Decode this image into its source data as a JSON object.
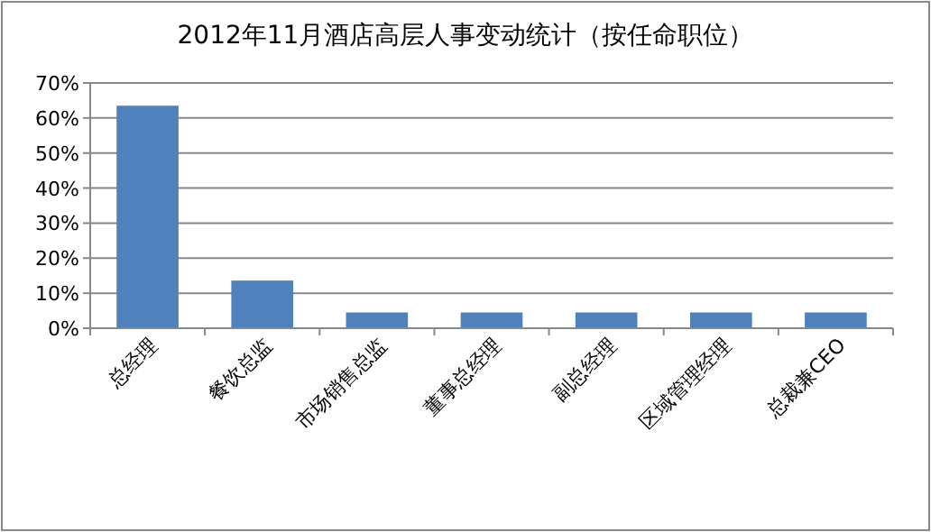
{
  "chart_data": {
    "type": "bar",
    "title": "2012年11月酒店高层人事变动统计（按任命职位）",
    "categories": [
      "总经理",
      "餐饮总监",
      "市场销售总监",
      "董事总经理",
      "副总经理",
      "区域管理经理",
      "总裁兼CEO"
    ],
    "values": [
      63.5,
      13.6,
      4.5,
      4.5,
      4.5,
      4.5,
      4.5
    ],
    "color": "#4f81bd",
    "ylim": [
      0,
      70
    ],
    "yticks": [
      {
        "value": 0,
        "label": "0%"
      },
      {
        "value": 10,
        "label": "10%"
      },
      {
        "value": 20,
        "label": "20%"
      },
      {
        "value": 30,
        "label": "30%"
      },
      {
        "value": 40,
        "label": "40%"
      },
      {
        "value": 50,
        "label": "50%"
      },
      {
        "value": 60,
        "label": "60%"
      },
      {
        "value": 70,
        "label": "70%"
      }
    ],
    "grid": "y"
  }
}
